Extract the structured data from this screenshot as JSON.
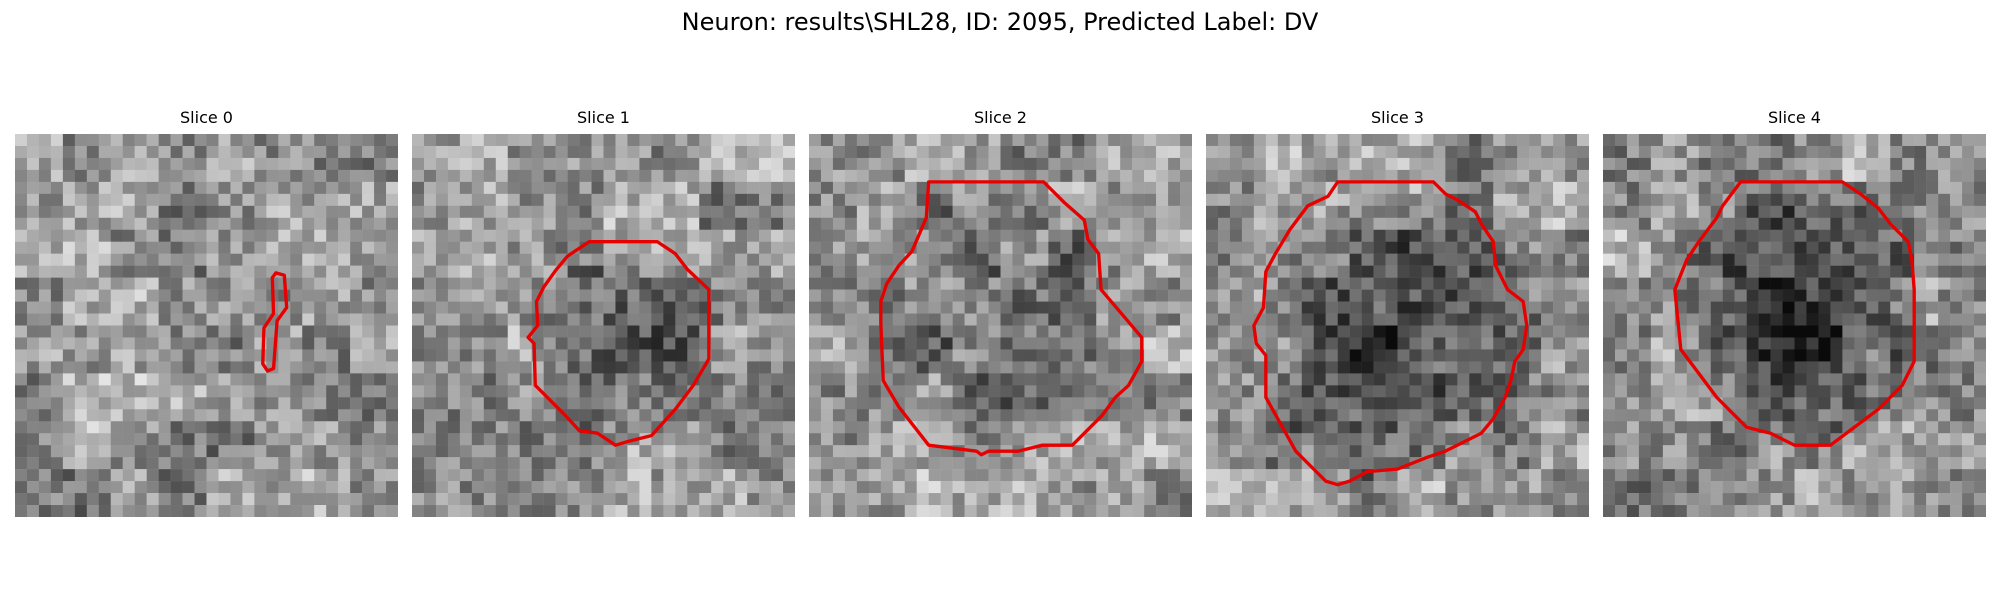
{
  "figure": {
    "title": "Neuron: results\\SHL28, ID: 2095, Predicted Label: DV",
    "contour_color": "#e60000",
    "colormap": "gray",
    "panels": [
      {
        "title": "Slice 0"
      },
      {
        "title": "Slice 1"
      },
      {
        "title": "Slice 2"
      },
      {
        "title": "Slice 3"
      },
      {
        "title": "Slice 4"
      }
    ]
  }
}
